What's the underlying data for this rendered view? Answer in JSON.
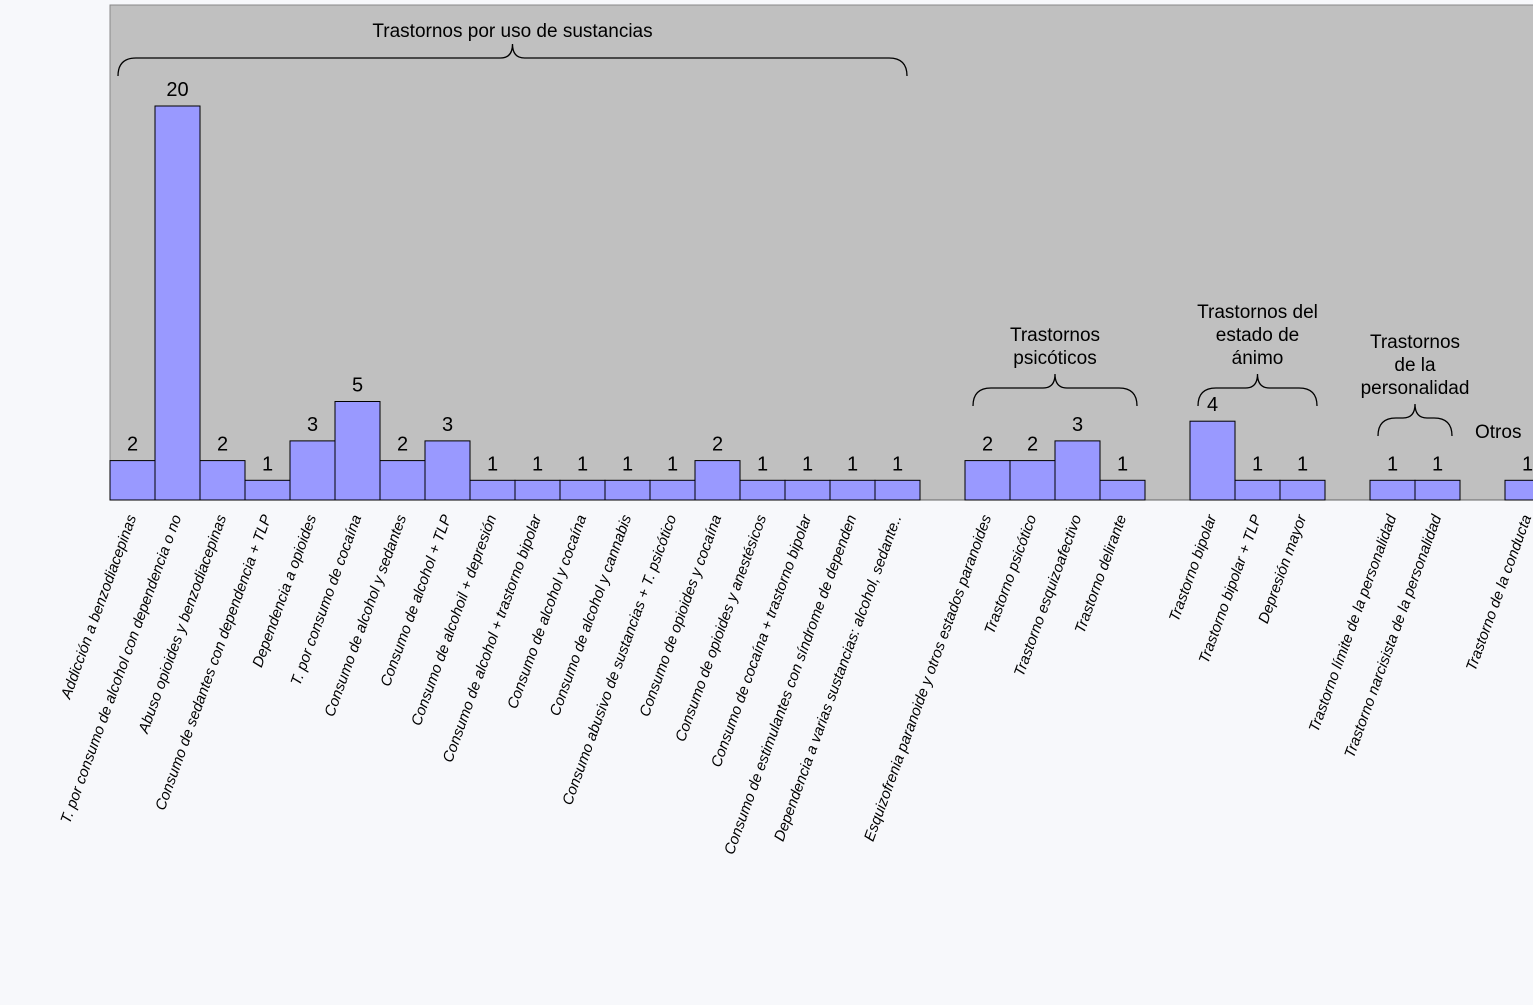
{
  "chart_data": {
    "type": "bar",
    "title": "",
    "xlabel": "",
    "ylabel": "",
    "ylim": [
      0,
      20
    ],
    "grid": false,
    "legend": "none",
    "colors": {
      "plot_background": "#c0c0c0",
      "bar_fill": "#9999ff",
      "bar_stroke": "#000000",
      "page_background": "#f7f8fb"
    },
    "categories": [
      "Addicción a benzodiacepinas",
      "T. por consumo de alcohol con dependencia o no",
      "Abuso opioides y benzodiacepinas",
      "Consumo de sedantes con dependencia + TLP",
      "Dependencia a opioides",
      "T. por consumo de cocaína",
      "Consumo de alcohol y sedantes",
      "Consumo de alcohol + TLP",
      "Consumo de alcohoil + depresión",
      "Consumo de alcohol + trastorno bipolar",
      "Consumo de alcohol y cocaína",
      "Consumo de alcohol y cannabis",
      "Consumo abusivo de sustancias + T. psicótico",
      "Consumo de opioides y cocaína",
      "Consumo de opioides y anestésicos",
      "Consumo de cocaína + trastorno bipolar",
      "Consumo de estimulantes con síndrome de dependen",
      "Dependencia a varias sustancias: alcohol, sedante..",
      "Esquizofrenia paranoide y otros estados paranoides",
      "Trastorno psicótico",
      "Trastorno esquizoafectivo",
      "Trastorno delirante",
      "Trastorno bipolar",
      "Trastorno bipolar + TLP",
      "Depresión mayor",
      "Trastorno límite de la personalidad",
      "Trastorno narcisista de la personalidad",
      "Trastorno de la conducta"
    ],
    "values": [
      2,
      20,
      2,
      1,
      3,
      5,
      2,
      3,
      1,
      1,
      1,
      1,
      1,
      2,
      1,
      1,
      1,
      1,
      2,
      2,
      3,
      1,
      4,
      1,
      1,
      1,
      1,
      1
    ],
    "group_annotations": [
      {
        "lines": [
          "Trastornos por uso de sustancias"
        ],
        "from": 0,
        "to": 16
      },
      {
        "lines": [
          "Trastornos",
          "psicóticos"
        ],
        "from": 18,
        "to": 21
      },
      {
        "lines": [
          "Trastornos del",
          "estado de",
          "ánimo"
        ],
        "from": 22,
        "to": 24
      },
      {
        "lines": [
          "Trastornos",
          "de la",
          "personalidad"
        ],
        "from": 25,
        "to": 26
      },
      {
        "lines": [
          "Otros"
        ],
        "from": 27,
        "to": 27
      }
    ]
  }
}
